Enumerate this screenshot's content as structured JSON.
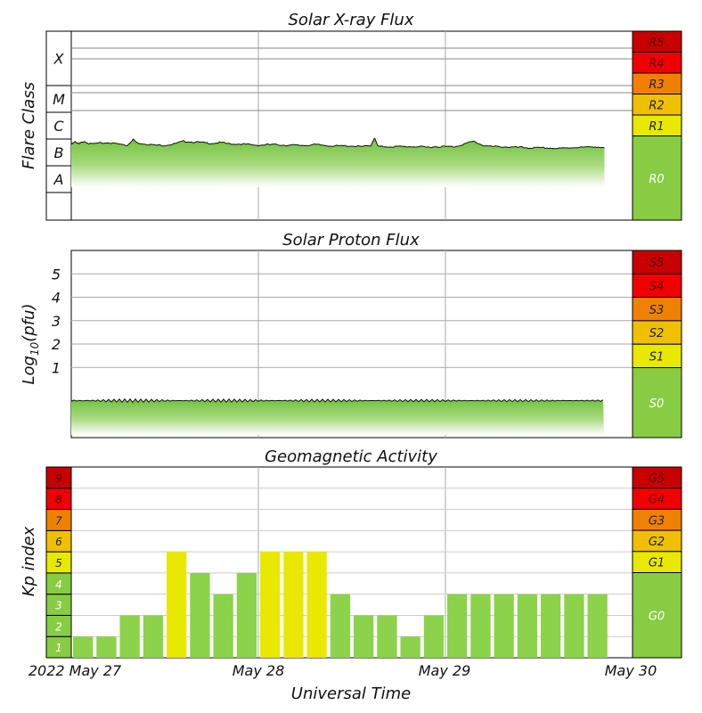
{
  "chart_data": [
    {
      "type": "area",
      "title": "Solar X-ray Flux",
      "ylabel": "Flare Class",
      "y_class_labels": [
        "X",
        "M",
        "C",
        "B",
        "A"
      ],
      "x_day_labels": [
        "2022 May 27",
        "May 28",
        "May 29",
        "May 30"
      ],
      "scale": {
        "labels": [
          "R5",
          "R4",
          "R3",
          "R2",
          "R1",
          "R0"
        ],
        "colors": [
          "#c80000",
          "#f00000",
          "#f08000",
          "#f0c000",
          "#e8e800",
          "#88cc44"
        ]
      },
      "series": [
        {
          "log_flux_relative": [
            [
              0.0,
              -0.15
            ],
            [
              0.02,
              0.05
            ],
            [
              0.04,
              -0.05
            ],
            [
              0.06,
              0.0
            ],
            [
              0.08,
              0.05
            ],
            [
              0.1,
              -0.1
            ],
            [
              0.15,
              -0.05
            ],
            [
              0.2,
              0.0
            ],
            [
              0.25,
              -0.1
            ],
            [
              0.3,
              -0.2
            ],
            [
              0.33,
              0.25
            ],
            [
              0.35,
              0.0
            ],
            [
              0.4,
              -0.1
            ],
            [
              0.45,
              -0.2
            ],
            [
              0.5,
              -0.2
            ],
            [
              0.55,
              -0.1
            ],
            [
              0.6,
              0.1
            ],
            [
              0.65,
              0.05
            ],
            [
              0.7,
              0.0
            ],
            [
              0.75,
              -0.05
            ],
            [
              0.8,
              0.0
            ],
            [
              0.85,
              -0.1
            ],
            [
              0.9,
              -0.1
            ],
            [
              0.95,
              -0.15
            ],
            [
              1.0,
              -0.2
            ],
            [
              1.05,
              -0.15
            ],
            [
              1.1,
              -0.15
            ],
            [
              1.15,
              -0.2
            ],
            [
              1.2,
              -0.2
            ],
            [
              1.25,
              -0.2
            ],
            [
              1.3,
              -0.15
            ],
            [
              1.35,
              -0.2
            ],
            [
              1.4,
              -0.25
            ],
            [
              1.45,
              -0.25
            ],
            [
              1.5,
              -0.25
            ],
            [
              1.55,
              -0.3
            ],
            [
              1.6,
              -0.25
            ],
            [
              1.62,
              0.35
            ],
            [
              1.64,
              -0.3
            ],
            [
              1.7,
              -0.3
            ],
            [
              1.75,
              -0.3
            ],
            [
              1.8,
              -0.3
            ],
            [
              1.85,
              -0.3
            ],
            [
              1.9,
              -0.35
            ],
            [
              1.95,
              -0.3
            ],
            [
              2.0,
              -0.3
            ],
            [
              2.05,
              -0.3
            ],
            [
              2.1,
              -0.1
            ],
            [
              2.15,
              0.1
            ],
            [
              2.2,
              -0.2
            ],
            [
              2.25,
              -0.3
            ],
            [
              2.3,
              -0.3
            ],
            [
              2.35,
              -0.35
            ],
            [
              2.4,
              -0.35
            ],
            [
              2.45,
              -0.4
            ],
            [
              2.5,
              -0.4
            ],
            [
              2.55,
              -0.4
            ],
            [
              2.6,
              -0.45
            ],
            [
              2.65,
              -0.4
            ],
            [
              2.7,
              -0.35
            ],
            [
              2.75,
              -0.35
            ],
            [
              2.8,
              -0.3
            ],
            [
              2.85,
              -0.4
            ]
          ]
        }
      ]
    },
    {
      "type": "area",
      "title": "Solar Proton Flux",
      "ylabel": "Log10(pfu)",
      "ylabel_parts": [
        "Log",
        "10",
        "(pfu)"
      ],
      "yticks": [
        1,
        2,
        3,
        4,
        5
      ],
      "ylim": [
        -2,
        6
      ],
      "scale": {
        "labels": [
          "S5",
          "S4",
          "S3",
          "S2",
          "S1",
          "S0"
        ],
        "colors": [
          "#c80000",
          "#f00000",
          "#f08000",
          "#f0c000",
          "#e8e800",
          "#88cc44"
        ]
      },
      "series": [
        {
          "log_pfu_level": -0.42
        }
      ]
    },
    {
      "type": "bar",
      "title": "Geomagnetic Activity",
      "ylabel": "Kp index",
      "xlabel": "Universal Time",
      "x_day_labels": [
        "2022 May 27",
        "May 28",
        "May 29",
        "May 30"
      ],
      "ylim": [
        0,
        9
      ],
      "kp_levels": [
        "1",
        "2",
        "3",
        "4",
        "5",
        "6",
        "7",
        "8",
        "9"
      ],
      "kp_colors": [
        "#88cc44",
        "#88cc44",
        "#88cc44",
        "#88cc44",
        "#e8e800",
        "#f0c000",
        "#f08000",
        "#f00000",
        "#c80000"
      ],
      "bar_colors": {
        "quiet": "#8cd24a",
        "storm": "#e8e800"
      },
      "scale": {
        "labels": [
          "G5",
          "G4",
          "G3",
          "G2",
          "G1",
          "G0"
        ],
        "colors": [
          "#c80000",
          "#f00000",
          "#f08000",
          "#f0c000",
          "#e8e800",
          "#88cc44"
        ]
      },
      "series": [
        {
          "interval_hours": 3,
          "values": [
            1,
            1,
            2,
            2,
            5,
            4,
            3,
            4,
            5,
            5,
            5,
            3,
            2,
            2,
            1,
            2,
            3,
            3,
            3,
            3,
            3,
            3,
            3
          ]
        }
      ]
    }
  ]
}
